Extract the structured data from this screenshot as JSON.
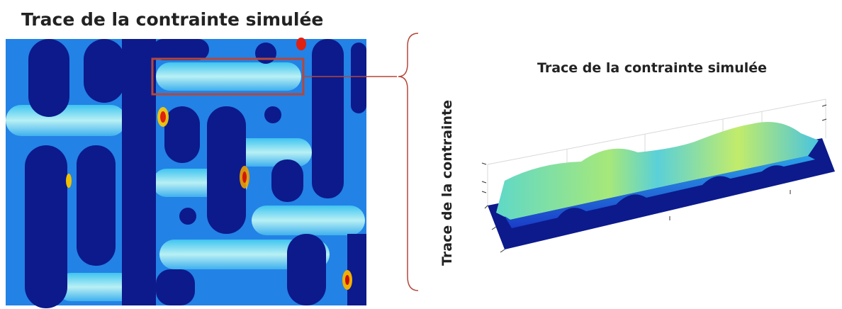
{
  "left_panel": {
    "title": "Trace de la contrainte simulée"
  },
  "right_panel": {
    "title": "Trace de la contrainte simulée",
    "z_axis_label": "Trace de la contrainte"
  }
}
